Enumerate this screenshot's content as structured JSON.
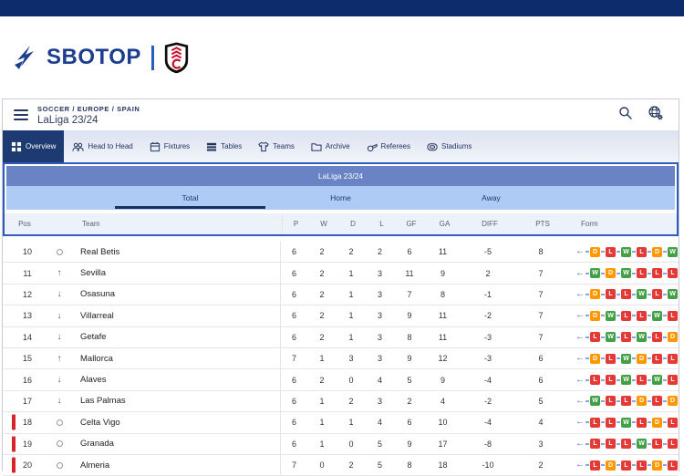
{
  "brand": {
    "name": "SBOTOP"
  },
  "breadcrumb": {
    "path": "SOCCER / EUROPE / SPAIN",
    "title": "LaLiga 23/24"
  },
  "nav": {
    "tabs": [
      {
        "id": "overview",
        "label": "Overview",
        "active": true
      },
      {
        "id": "head-to-head",
        "label": "Head to Head",
        "active": false
      },
      {
        "id": "fixtures",
        "label": "Fixtures",
        "active": false
      },
      {
        "id": "tables",
        "label": "Tables",
        "active": false
      },
      {
        "id": "teams",
        "label": "Teams",
        "active": false
      },
      {
        "id": "archive",
        "label": "Archive",
        "active": false
      },
      {
        "id": "referees",
        "label": "Referees",
        "active": false
      },
      {
        "id": "stadiums",
        "label": "Stadiums",
        "active": false
      }
    ]
  },
  "widget": {
    "title": "LaLiga 23/24",
    "subtabs": [
      {
        "label": "Total",
        "active": true
      },
      {
        "label": "Home",
        "active": false
      },
      {
        "label": "Away",
        "active": false
      }
    ]
  },
  "table": {
    "columns": {
      "pos": "Pos",
      "team": "Team",
      "p": "P",
      "w": "W",
      "d": "D",
      "l": "L",
      "gf": "GF",
      "ga": "GA",
      "diff": "DIFF",
      "pts": "PTS",
      "form": "Form"
    },
    "rows": [
      {
        "pos": 10,
        "movement": "same",
        "team": "Real Betis",
        "p": 6,
        "w": 2,
        "d": 2,
        "l": 2,
        "gf": 6,
        "ga": 11,
        "diff": -5,
        "pts": 8,
        "form": [
          "D",
          "L",
          "W",
          "L",
          "D",
          "W"
        ],
        "relegation": false
      },
      {
        "pos": 11,
        "movement": "up",
        "team": "Sevilla",
        "p": 6,
        "w": 2,
        "d": 1,
        "l": 3,
        "gf": 11,
        "ga": 9,
        "diff": 2,
        "pts": 7,
        "form": [
          "W",
          "D",
          "W",
          "L",
          "L",
          "L"
        ],
        "relegation": false
      },
      {
        "pos": 12,
        "movement": "down",
        "team": "Osasuna",
        "p": 6,
        "w": 2,
        "d": 1,
        "l": 3,
        "gf": 7,
        "ga": 8,
        "diff": -1,
        "pts": 7,
        "form": [
          "D",
          "L",
          "L",
          "W",
          "L",
          "W"
        ],
        "relegation": false
      },
      {
        "pos": 13,
        "movement": "down",
        "team": "Villarreal",
        "p": 6,
        "w": 2,
        "d": 1,
        "l": 3,
        "gf": 9,
        "ga": 11,
        "diff": -2,
        "pts": 7,
        "form": [
          "D",
          "W",
          "L",
          "L",
          "W",
          "L"
        ],
        "relegation": false
      },
      {
        "pos": 14,
        "movement": "down",
        "team": "Getafe",
        "p": 6,
        "w": 2,
        "d": 1,
        "l": 3,
        "gf": 8,
        "ga": 11,
        "diff": -3,
        "pts": 7,
        "form": [
          "L",
          "W",
          "L",
          "W",
          "L",
          "D"
        ],
        "relegation": false
      },
      {
        "pos": 15,
        "movement": "up",
        "team": "Mallorca",
        "p": 7,
        "w": 1,
        "d": 3,
        "l": 3,
        "gf": 9,
        "ga": 12,
        "diff": -3,
        "pts": 6,
        "form": [
          "D",
          "L",
          "W",
          "D",
          "L",
          "L"
        ],
        "relegation": false
      },
      {
        "pos": 16,
        "movement": "down",
        "team": "Alaves",
        "p": 6,
        "w": 2,
        "d": 0,
        "l": 4,
        "gf": 5,
        "ga": 9,
        "diff": -4,
        "pts": 6,
        "form": [
          "L",
          "L",
          "W",
          "L",
          "W",
          "L"
        ],
        "relegation": false
      },
      {
        "pos": 17,
        "movement": "down",
        "team": "Las Palmas",
        "p": 6,
        "w": 1,
        "d": 2,
        "l": 3,
        "gf": 2,
        "ga": 4,
        "diff": -2,
        "pts": 5,
        "form": [
          "W",
          "L",
          "L",
          "D",
          "L",
          "D"
        ],
        "relegation": false
      },
      {
        "pos": 18,
        "movement": "same",
        "team": "Celta Vigo",
        "p": 6,
        "w": 1,
        "d": 1,
        "l": 4,
        "gf": 6,
        "ga": 10,
        "diff": -4,
        "pts": 4,
        "form": [
          "L",
          "L",
          "W",
          "L",
          "D",
          "L"
        ],
        "relegation": true
      },
      {
        "pos": 19,
        "movement": "same",
        "team": "Granada",
        "p": 6,
        "w": 1,
        "d": 0,
        "l": 5,
        "gf": 9,
        "ga": 17,
        "diff": -8,
        "pts": 3,
        "form": [
          "L",
          "L",
          "L",
          "W",
          "L",
          "L"
        ],
        "relegation": true
      },
      {
        "pos": 20,
        "movement": "same",
        "team": "Almeria",
        "p": 7,
        "w": 0,
        "d": 2,
        "l": 5,
        "gf": 8,
        "ga": 18,
        "diff": -10,
        "pts": 2,
        "form": [
          "L",
          "D",
          "L",
          "L",
          "D",
          "L"
        ],
        "relegation": true
      }
    ]
  },
  "colors": {
    "win": "#43a047",
    "loss": "#e53935",
    "draw": "#ff9800",
    "relegation_bar": "#d8232a",
    "accent_navy": "#1e3a72",
    "widget_border": "#2e5bbd",
    "title_bar": "#6a83c4",
    "subtab_bar": "#aecbf5",
    "topbar": "#0d2c6b",
    "brand_navy": "#1b3e8f"
  }
}
